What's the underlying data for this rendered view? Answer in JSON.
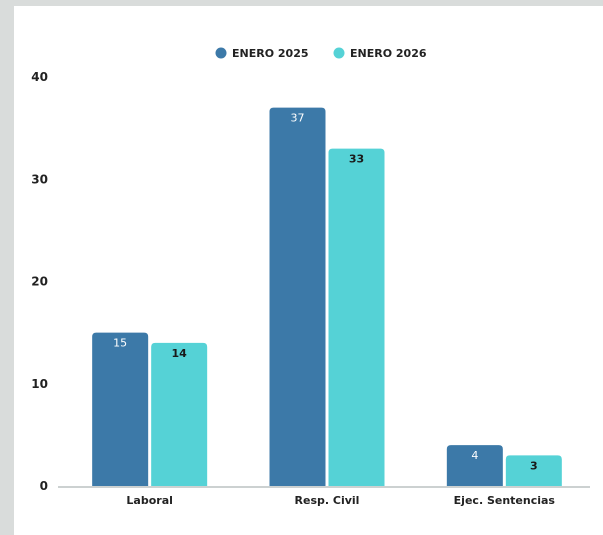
{
  "chart_data": {
    "type": "bar",
    "categories": [
      "Laboral",
      "Resp. Civil",
      "Ejec. Sentencias"
    ],
    "series": [
      {
        "name": "ENERO 2025",
        "values": [
          15,
          37,
          4
        ],
        "color": "#3c79a8"
      },
      {
        "name": "ENERO 2026",
        "values": [
          14,
          33,
          3
        ],
        "color": "#55d2d6"
      }
    ],
    "yticks": [
      0,
      10,
      20,
      30,
      40
    ],
    "ylim": [
      0,
      40
    ],
    "legend_position": "top-center",
    "grid": false
  }
}
